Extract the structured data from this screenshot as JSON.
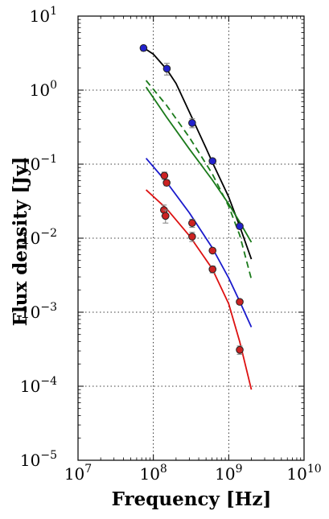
{
  "chart_data": {
    "type": "scatter",
    "title": "",
    "xlabel": "Frequency [Hz]",
    "ylabel": "Flux density [Jy]",
    "xscale": "log",
    "yscale": "log",
    "xlim": [
      10000000,
      10000000000
    ],
    "ylim": [
      1e-05,
      10
    ],
    "grid": true,
    "legend": "none",
    "x_ticks": [
      {
        "value": 10000000,
        "base": "10",
        "exp": "7"
      },
      {
        "value": 100000000,
        "base": "10",
        "exp": "8"
      },
      {
        "value": 1000000000,
        "base": "10",
        "exp": "9"
      },
      {
        "value": 10000000000,
        "base": "10",
        "exp": "10"
      }
    ],
    "y_ticks": [
      {
        "value": 1e-05,
        "base": "10",
        "exp": "−5"
      },
      {
        "value": 0.0001,
        "base": "10",
        "exp": "−4"
      },
      {
        "value": 0.001,
        "base": "10",
        "exp": "−3"
      },
      {
        "value": 0.01,
        "base": "10",
        "exp": "−2"
      },
      {
        "value": 0.1,
        "base": "10",
        "exp": "−1"
      },
      {
        "value": 1,
        "base": "10",
        "exp": "0"
      },
      {
        "value": 10,
        "base": "10",
        "exp": "1"
      }
    ],
    "points": [
      {
        "color": "#2222cc",
        "points": [
          {
            "x": 74000000,
            "y": 3.7,
            "err": 0.3
          },
          {
            "x": 151000000,
            "y": 1.95,
            "err": 0.35
          },
          {
            "x": 327000000,
            "y": 0.36,
            "err": 0.05
          },
          {
            "x": 610000000,
            "y": 0.11,
            "err": 0.008
          },
          {
            "x": 1400000000,
            "y": 0.0145,
            "err": 0.0012
          }
        ]
      },
      {
        "color": "#cc2222",
        "points": [
          {
            "x": 140000000,
            "y": 0.07,
            "err": 0.008
          },
          {
            "x": 150000000,
            "y": 0.056,
            "err": 0.005
          },
          {
            "x": 138000000,
            "y": 0.024,
            "err": 0.004
          },
          {
            "x": 145000000,
            "y": 0.02,
            "err": 0.004
          },
          {
            "x": 327000000,
            "y": 0.016,
            "err": 0.002
          },
          {
            "x": 327000000,
            "y": 0.0105,
            "err": 0.0015
          },
          {
            "x": 610000000,
            "y": 0.0068,
            "err": 0.0005
          },
          {
            "x": 610000000,
            "y": 0.0038,
            "err": 0.0004
          },
          {
            "x": 1400000000,
            "y": 0.00138,
            "err": 0.0001
          },
          {
            "x": 1400000000,
            "y": 0.00031,
            "err": 4e-05
          }
        ]
      }
    ],
    "curves": [
      {
        "color": "#000000",
        "dashed": false,
        "x": [
          74000000,
          100000000,
          151000000,
          200000000,
          327000000,
          500000000,
          610000000,
          1000000000,
          1400000000,
          2000000000
        ],
        "y": [
          3.75,
          3.05,
          1.9,
          1.23,
          0.42,
          0.165,
          0.105,
          0.036,
          0.0145,
          0.0052
        ]
      },
      {
        "color": "#1a7a1a",
        "dashed": false,
        "x": [
          80000000,
          150000000,
          300000000,
          600000000,
          1000000000,
          1400000000,
          2000000000
        ],
        "y": [
          1.1,
          0.43,
          0.16,
          0.062,
          0.029,
          0.0165,
          0.0088
        ]
      },
      {
        "color": "#1a7a1a",
        "dashed": true,
        "x": [
          80000000,
          150000000,
          300000000,
          600000000,
          1000000000,
          1400000000,
          2000000000
        ],
        "y": [
          1.35,
          0.62,
          0.23,
          0.075,
          0.027,
          0.011,
          0.0028
        ]
      },
      {
        "color": "#1a1acc",
        "dashed": false,
        "x": [
          80000000,
          150000000,
          300000000,
          600000000,
          1000000000,
          1400000000,
          2000000000
        ],
        "y": [
          0.12,
          0.057,
          0.022,
          0.0075,
          0.0029,
          0.0014,
          0.00063
        ]
      },
      {
        "color": "#dd1111",
        "dashed": false,
        "x": [
          80000000,
          150000000,
          300000000,
          600000000,
          1000000000,
          1400000000,
          2000000000
        ],
        "y": [
          0.045,
          0.025,
          0.0108,
          0.0039,
          0.0013,
          0.0004,
          9e-05
        ]
      }
    ]
  }
}
